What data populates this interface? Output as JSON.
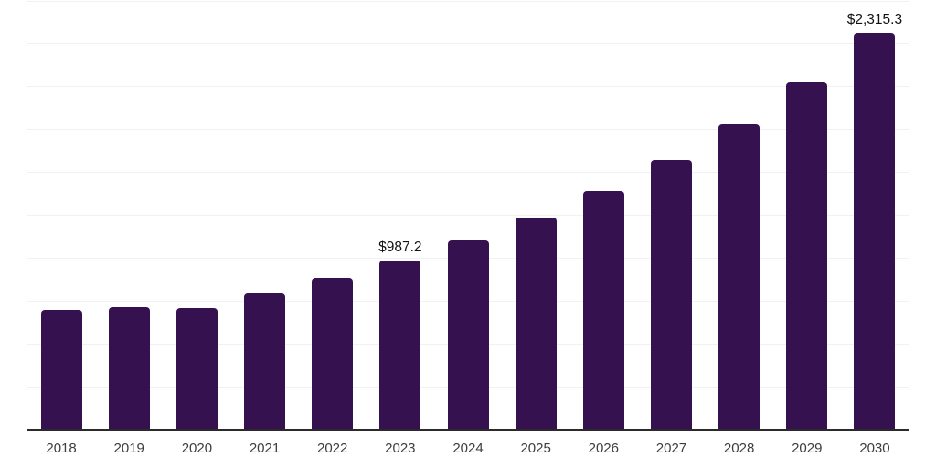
{
  "chart_data": {
    "type": "bar",
    "title": "",
    "xlabel": "",
    "ylabel": "",
    "categories": [
      "2018",
      "2019",
      "2020",
      "2021",
      "2022",
      "2023",
      "2024",
      "2025",
      "2026",
      "2027",
      "2028",
      "2029",
      "2030"
    ],
    "values": [
      700,
      713,
      708,
      795,
      884,
      987.2,
      1102,
      1235,
      1390,
      1570,
      1780,
      2028,
      2315.3
    ],
    "data_labels": [
      {
        "category": "2023",
        "text": "$987.2"
      },
      {
        "category": "2030",
        "text": "$2,315.3"
      }
    ],
    "ylim": [
      0,
      2500
    ],
    "grid_interval": 250,
    "grid": true,
    "legend": false,
    "y_axis_tick_labels_visible": false
  },
  "style": {
    "bar_color": "#351150",
    "gridline_color": "#f1f1f1",
    "axis_line_color": "#2b2b2b",
    "tick_label_color": "#3d3d3d",
    "data_label_color": "#121212",
    "background": "#ffffff"
  }
}
